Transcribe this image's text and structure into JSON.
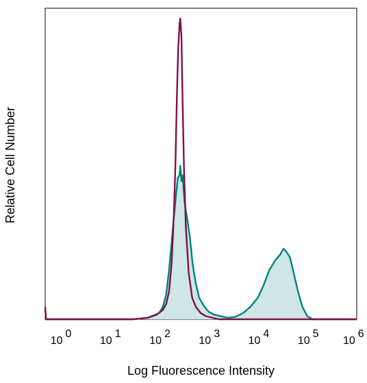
{
  "chart_data": {
    "type": "area",
    "title": "",
    "xlabel": "Log Fluorescence Intensity",
    "ylabel": "Relative Cell Number",
    "x_scale": "log",
    "xlim": [
      0.5,
      1000000
    ],
    "ylim": [
      0,
      1
    ],
    "grid": false,
    "x_ticks": [
      {
        "base": "10",
        "exp": "0",
        "value": 1
      },
      {
        "base": "10",
        "exp": "1",
        "value": 10
      },
      {
        "base": "10",
        "exp": "2",
        "value": 100
      },
      {
        "base": "10",
        "exp": "3",
        "value": 1000
      },
      {
        "base": "10",
        "exp": "4",
        "value": 10000
      },
      {
        "base": "10",
        "exp": "5",
        "value": 100000
      },
      {
        "base": "10",
        "exp": "6",
        "value": 1000000
      }
    ],
    "series": [
      {
        "color": "#00807f",
        "fill": "#cfe6e6",
        "style": "filled",
        "points": [
          [
            0.5,
            0.03
          ],
          [
            0.52,
            0
          ],
          [
            30,
            0
          ],
          [
            60,
            0.005
          ],
          [
            100,
            0.02
          ],
          [
            120,
            0.04
          ],
          [
            140,
            0.08
          ],
          [
            160,
            0.16
          ],
          [
            180,
            0.25
          ],
          [
            200,
            0.33
          ],
          [
            220,
            0.4
          ],
          [
            240,
            0.46
          ],
          [
            260,
            0.47
          ],
          [
            270,
            0.5
          ],
          [
            285,
            0.45
          ],
          [
            300,
            0.47
          ],
          [
            330,
            0.38
          ],
          [
            370,
            0.33
          ],
          [
            420,
            0.27
          ],
          [
            480,
            0.18
          ],
          [
            550,
            0.12
          ],
          [
            650,
            0.07
          ],
          [
            800,
            0.045
          ],
          [
            1000,
            0.025
          ],
          [
            1300,
            0.015
          ],
          [
            1800,
            0.01
          ],
          [
            2500,
            0.005
          ],
          [
            3500,
            0.008
          ],
          [
            5000,
            0.02
          ],
          [
            7000,
            0.04
          ],
          [
            10000,
            0.07
          ],
          [
            13000,
            0.11
          ],
          [
            17000,
            0.16
          ],
          [
            22000,
            0.19
          ],
          [
            28000,
            0.21
          ],
          [
            33000,
            0.23
          ],
          [
            38000,
            0.22
          ],
          [
            45000,
            0.2
          ],
          [
            55000,
            0.14
          ],
          [
            65000,
            0.09
          ],
          [
            80000,
            0.04
          ],
          [
            100000,
            0.01
          ],
          [
            130000,
            0
          ],
          [
            1000000,
            0
          ]
        ]
      },
      {
        "color": "#7d1043",
        "style": "line",
        "points": [
          [
            0.5,
            0.04
          ],
          [
            0.52,
            0
          ],
          [
            30,
            0
          ],
          [
            60,
            0.005
          ],
          [
            90,
            0.015
          ],
          [
            120,
            0.03
          ],
          [
            140,
            0.05
          ],
          [
            160,
            0.09
          ],
          [
            180,
            0.18
          ],
          [
            200,
            0.34
          ],
          [
            215,
            0.5
          ],
          [
            230,
            0.72
          ],
          [
            245,
            0.88
          ],
          [
            260,
            0.96
          ],
          [
            270,
            0.98
          ],
          [
            285,
            0.92
          ],
          [
            300,
            0.72
          ],
          [
            320,
            0.5
          ],
          [
            350,
            0.3
          ],
          [
            400,
            0.15
          ],
          [
            470,
            0.07
          ],
          [
            560,
            0.04
          ],
          [
            700,
            0.02
          ],
          [
            900,
            0.01
          ],
          [
            1200,
            0.005
          ],
          [
            1600,
            0
          ],
          [
            1000000,
            0
          ]
        ]
      }
    ]
  }
}
